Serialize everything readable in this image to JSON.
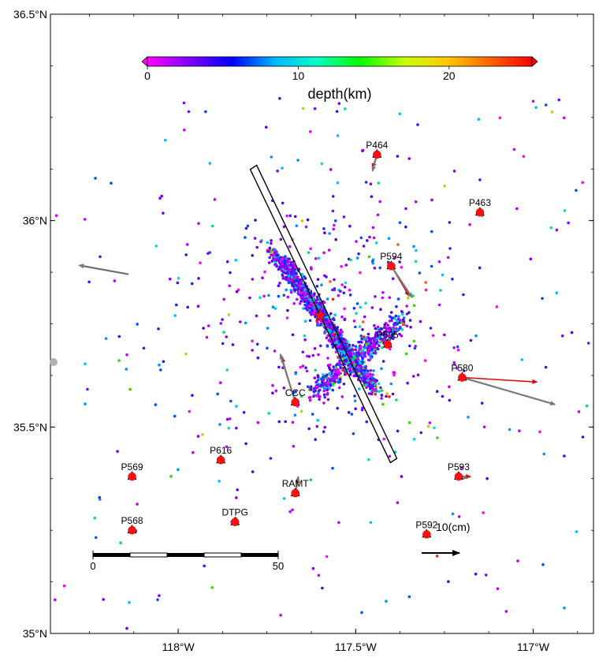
{
  "map": {
    "lat_labels": [
      {
        "value": 36.5,
        "text": "36.5°N"
      },
      {
        "value": 36.0,
        "text": "36°N"
      },
      {
        "value": 35.5,
        "text": "35.5°N"
      },
      {
        "value": 35.0,
        "text": "35°N"
      }
    ],
    "lon_labels": [
      {
        "value": -118.0,
        "text": "118°W"
      },
      {
        "value": -117.5,
        "text": "117.5°W"
      },
      {
        "value": -117.0,
        "text": "117°W"
      }
    ],
    "extent": {
      "lon_min": -118.36,
      "lon_max": -116.83,
      "lat_min": 35.0,
      "lat_max": 36.5
    }
  },
  "colorbar": {
    "ticks": [
      {
        "value": 0,
        "text": "0"
      },
      {
        "value": 10,
        "text": "10"
      },
      {
        "value": 20,
        "text": "20"
      }
    ],
    "range": [
      0,
      25.5
    ],
    "label": "depth(km)",
    "colors": [
      "#ff00ff",
      "#7f00ff",
      "#0000ff",
      "#00b4ff",
      "#00ffc8",
      "#00ff00",
      "#c8ff00",
      "#ffc800",
      "#ff6400",
      "#ff0000"
    ]
  },
  "scale_bar": {
    "start_label": "0",
    "end_label": "50"
  },
  "reference_vector": {
    "label": "10(cm)"
  },
  "epicenter": {
    "lon": -117.6,
    "lat": 35.77
  },
  "rupture_box": {
    "corners": [
      [
        -117.797,
        36.124
      ],
      [
        -117.779,
        36.134
      ],
      [
        -117.384,
        35.424
      ],
      [
        -117.402,
        35.414
      ]
    ]
  },
  "stations": [
    {
      "name": "P464",
      "lon": -117.44,
      "lat": 36.16,
      "obs": [
        -0.03,
        -0.11
      ],
      "model": [
        -0.03,
        -0.09
      ]
    },
    {
      "name": "P463",
      "lon": -117.15,
      "lat": 36.02,
      "obs": [
        0.02,
        -0.03
      ],
      "model": [
        0.02,
        -0.02
      ]
    },
    {
      "name": "P594",
      "lon": -117.4,
      "lat": 35.89,
      "obs": [
        0.14,
        -0.21
      ],
      "model": [
        0.12,
        -0.2
      ]
    },
    {
      "name": "P595",
      "lon": -117.41,
      "lat": 35.7,
      "obs": [
        0.01,
        0.05
      ],
      "model": [
        0.01,
        0.04
      ]
    },
    {
      "name": "P580",
      "lon": -117.2,
      "lat": 35.62,
      "obs": [
        0.62,
        -0.18
      ],
      "model": [
        0.5,
        -0.03
      ]
    },
    {
      "name": "CCC",
      "lon": -117.67,
      "lat": 35.56,
      "obs": [
        -0.1,
        0.32
      ],
      "model": [
        -0.09,
        0.3
      ]
    },
    {
      "name": "P593",
      "lon": -117.21,
      "lat": 35.38,
      "obs": [
        0.06,
        -0.01
      ],
      "model": [
        0.08,
        0.0
      ]
    },
    {
      "name": "RAMT",
      "lon": -117.67,
      "lat": 35.34,
      "obs": [
        0.02,
        0.11
      ],
      "model": [
        0.02,
        0.1
      ]
    },
    {
      "name": "P616",
      "lon": -117.88,
      "lat": 35.42,
      "obs": [
        0.0,
        0.03
      ],
      "model": [
        0.0,
        0.02
      ]
    },
    {
      "name": "P569",
      "lon": -118.13,
      "lat": 35.38,
      "obs": [
        0.01,
        0.0
      ],
      "model": [
        0.01,
        0.0
      ]
    },
    {
      "name": "P568",
      "lon": -118.13,
      "lat": 35.25,
      "obs": [
        0.0,
        0.0
      ],
      "model": [
        0.0,
        0.0
      ]
    },
    {
      "name": "DTPG",
      "lon": -117.84,
      "lat": 35.27,
      "obs": [
        0.01,
        0.03
      ],
      "model": [
        0.01,
        0.02
      ]
    },
    {
      "name": "P592",
      "lon": -117.3,
      "lat": 35.24,
      "obs": [
        0.0,
        0.0
      ],
      "model": [
        0.0,
        0.0
      ]
    }
  ],
  "far_vector": {
    "lon": -118.14,
    "lat": 35.87,
    "obs": [
      -0.33,
      0.06
    ]
  }
}
